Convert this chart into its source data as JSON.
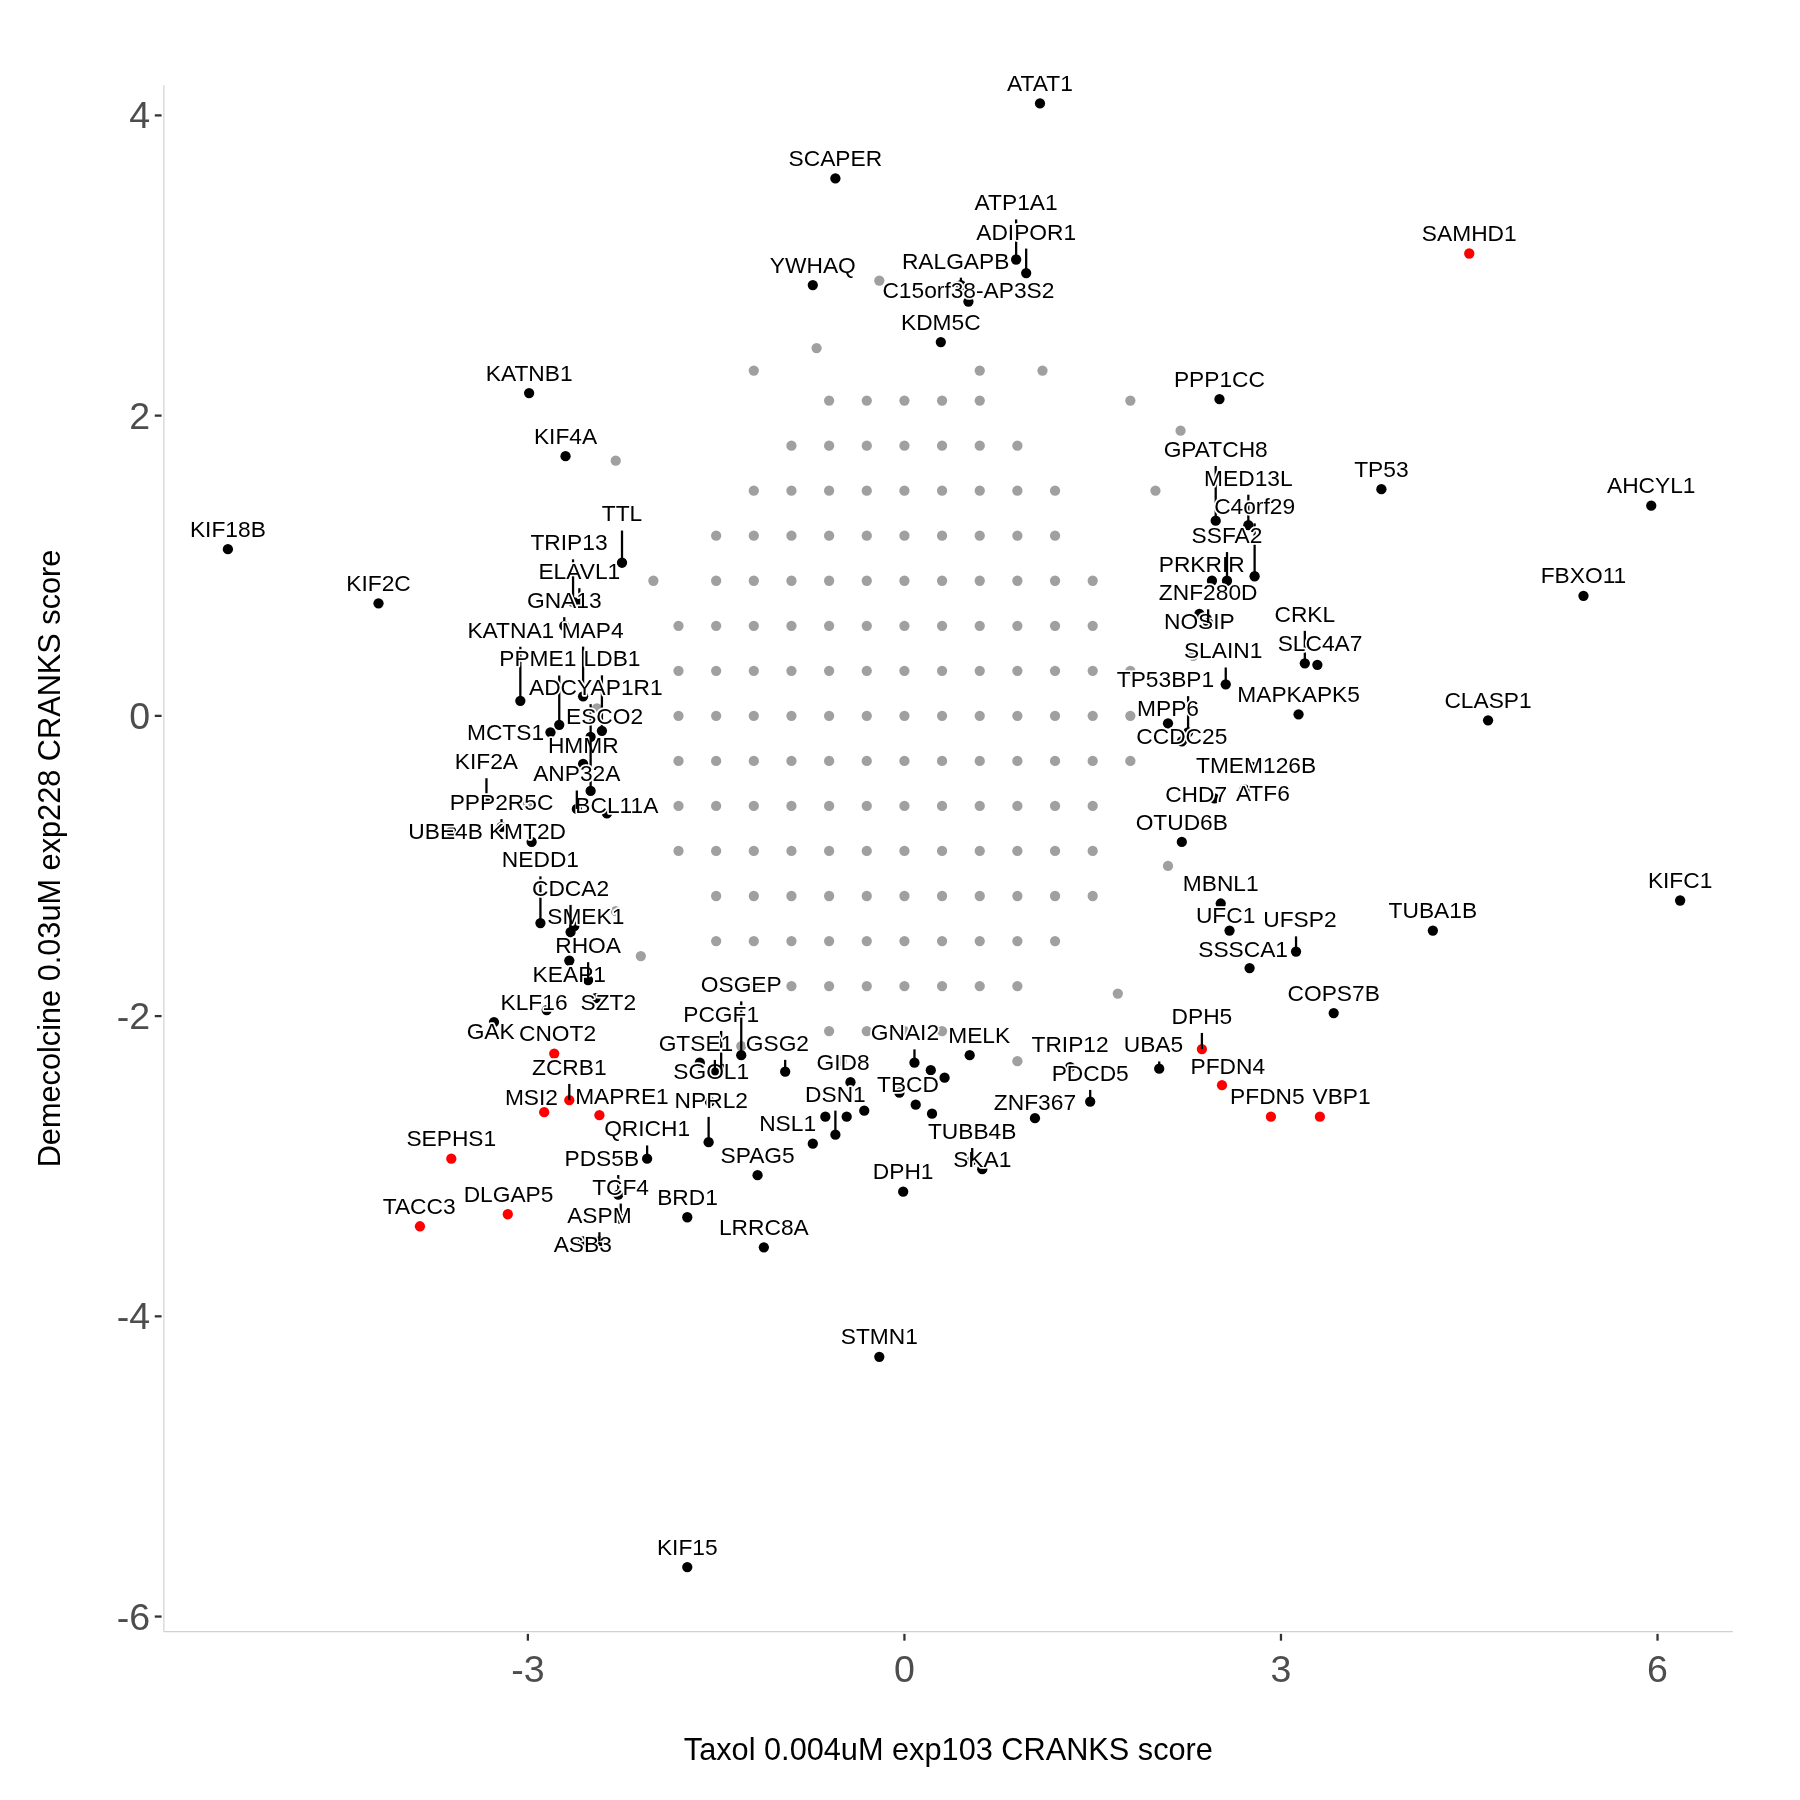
{
  "chart_data": {
    "type": "scatter",
    "xlabel": "Taxol 0.004uM exp103 CRANKS score",
    "ylabel": "Demecolcine 0.03uM exp228 CRANKS score",
    "xlim": [
      -5.9,
      6.6
    ],
    "ylim": [
      -6.1,
      4.2
    ],
    "xticks": [
      -3,
      0,
      3,
      6
    ],
    "yticks": [
      -6,
      -4,
      -2,
      0,
      2,
      4
    ],
    "grid": false,
    "marker": "circle",
    "series": [
      {
        "color": "#a0a0a0",
        "x": [
          -0.6,
          -0.3,
          0,
          0.3,
          0.6,
          -0.9,
          -0.6,
          -0.3,
          0,
          0.3,
          0.6,
          0.9,
          -1.2,
          -0.9,
          -0.6,
          -0.3,
          0,
          0.3,
          0.6,
          0.9,
          1.2,
          -1.5,
          -1.2,
          -0.9,
          -0.6,
          -0.3,
          0,
          0.3,
          0.6,
          0.9,
          1.2,
          -1.5,
          -1.2,
          -0.9,
          -0.6,
          -0.3,
          0,
          0.3,
          0.6,
          0.9,
          1.2,
          1.5,
          -1.8,
          -1.5,
          -1.2,
          -0.9,
          -0.6,
          -0.3,
          0,
          0.3,
          0.6,
          0.9,
          1.2,
          1.5,
          -1.8,
          -1.5,
          -1.2,
          -0.9,
          -0.6,
          -0.3,
          0,
          0.3,
          0.6,
          0.9,
          1.2,
          1.5,
          1.8,
          -1.8,
          -1.5,
          -1.2,
          -0.9,
          -0.6,
          -0.3,
          0,
          0.3,
          0.6,
          0.9,
          1.2,
          1.5,
          1.8,
          -1.8,
          -1.5,
          -1.2,
          -0.9,
          -0.6,
          -0.3,
          0,
          0.3,
          0.6,
          0.9,
          1.2,
          1.5,
          1.8,
          -1.8,
          -1.5,
          -1.2,
          -0.9,
          -0.6,
          -0.3,
          0,
          0.3,
          0.6,
          0.9,
          1.2,
          1.5,
          -1.8,
          -1.5,
          -1.2,
          -0.9,
          -0.6,
          -0.3,
          0,
          0.3,
          0.6,
          0.9,
          1.2,
          1.5,
          -1.5,
          -1.2,
          -0.9,
          -0.6,
          -0.3,
          0,
          0.3,
          0.6,
          0.9,
          1.2,
          1.5,
          -1.5,
          -1.2,
          -0.9,
          -0.6,
          -0.3,
          0,
          0.3,
          0.6,
          0.9,
          1.2,
          -1.2,
          -0.9,
          -0.6,
          -0.3,
          0,
          0.3,
          0.6,
          0.9,
          -0.6,
          -0.3,
          0,
          0.3,
          -2.3,
          -1.2,
          -0.2,
          0.6,
          1.1,
          1.8,
          2.2,
          -2.45,
          -3.0,
          2.0,
          2.1,
          1.7,
          -1.3,
          -0.5,
          -2.1,
          -2.3,
          2.3,
          -2.0,
          0.9,
          -0.7
        ],
        "values": [
          2.1,
          2.1,
          2.1,
          2.1,
          2.1,
          1.8,
          1.8,
          1.8,
          1.8,
          1.8,
          1.8,
          1.8,
          1.5,
          1.5,
          1.5,
          1.5,
          1.5,
          1.5,
          1.5,
          1.5,
          1.5,
          1.2,
          1.2,
          1.2,
          1.2,
          1.2,
          1.2,
          1.2,
          1.2,
          1.2,
          1.2,
          0.9,
          0.9,
          0.9,
          0.9,
          0.9,
          0.9,
          0.9,
          0.9,
          0.9,
          0.9,
          0.9,
          0.6,
          0.6,
          0.6,
          0.6,
          0.6,
          0.6,
          0.6,
          0.6,
          0.6,
          0.6,
          0.6,
          0.6,
          0.3,
          0.3,
          0.3,
          0.3,
          0.3,
          0.3,
          0.3,
          0.3,
          0.3,
          0.3,
          0.3,
          0.3,
          0.3,
          0,
          0,
          0,
          0,
          0,
          0,
          0,
          0,
          0,
          0,
          0,
          0,
          0,
          -0.3,
          -0.3,
          -0.3,
          -0.3,
          -0.3,
          -0.3,
          -0.3,
          -0.3,
          -0.3,
          -0.3,
          -0.3,
          -0.3,
          -0.3,
          -0.6,
          -0.6,
          -0.6,
          -0.6,
          -0.6,
          -0.6,
          -0.6,
          -0.6,
          -0.6,
          -0.6,
          -0.6,
          -0.6,
          -0.9,
          -0.9,
          -0.9,
          -0.9,
          -0.9,
          -0.9,
          -0.9,
          -0.9,
          -0.9,
          -0.9,
          -0.9,
          -0.9,
          -1.2,
          -1.2,
          -1.2,
          -1.2,
          -1.2,
          -1.2,
          -1.2,
          -1.2,
          -1.2,
          -1.2,
          -1.2,
          -1.5,
          -1.5,
          -1.5,
          -1.5,
          -1.5,
          -1.5,
          -1.5,
          -1.5,
          -1.5,
          -1.5,
          -1.8,
          -1.8,
          -1.8,
          -1.8,
          -1.8,
          -1.8,
          -1.8,
          -1.8,
          -2.1,
          -2.1,
          -2.1,
          -2.1,
          1.7,
          2.3,
          2.9,
          2.3,
          2.3,
          2.1,
          1.9,
          0.05,
          -0.58,
          1.5,
          -1.0,
          -1.85,
          -2.2,
          -2.3,
          -1.6,
          -1.3,
          0.4,
          0.9,
          -2.3,
          2.45
        ]
      },
      {
        "color": "#000000",
        "x": [
          1.08,
          -0.55,
          0.89,
          0.97,
          0.45,
          -0.73,
          0.51,
          0.29,
          -2.99,
          -2.7,
          2.51,
          3.8,
          5.95,
          2.48,
          2.74,
          -5.39,
          -2.25,
          2.79,
          2.45,
          2.57,
          5.41,
          -4.19,
          -2.64,
          -2.59,
          -2.71,
          2.35,
          2.42,
          3.19,
          3.29,
          2.56,
          -2.56,
          -3.06,
          3.14,
          2.26,
          2.21,
          2.1,
          4.65,
          -2.75,
          -2.82,
          -2.41,
          -2.5,
          -2.56,
          -2.5,
          -3.33,
          -2.37,
          -2.61,
          2.77,
          2.71,
          2.47,
          -3.21,
          -3.61,
          -2.97,
          2.21,
          2.52,
          6.18,
          -2.9,
          -2.63,
          -2.66,
          2.59,
          4.21,
          3.12,
          -2.67,
          2.75,
          -2.52,
          -2.46,
          -2.85,
          3.42,
          -3.27,
          -1.3,
          0.52,
          -1.63,
          0.08,
          -1.46,
          -1.51,
          1.32,
          2.03,
          -0.95,
          -0.43,
          1.04,
          1.48,
          0.09,
          -1.56,
          -0.55,
          -0.73,
          -2.05,
          0.62,
          0.54,
          -1.17,
          -0.01,
          -2.28,
          -1.73,
          -2.26,
          -2.56,
          -2.43,
          -1.12,
          -0.2,
          -1.73,
          -1.55,
          -0.63,
          -0.46,
          -0.32,
          -0.04,
          0.21,
          0.32,
          0.22
        ],
        "values": [
          4.08,
          3.58,
          3.04,
          2.95,
          2.87,
          2.87,
          2.76,
          2.49,
          2.15,
          1.73,
          2.11,
          1.51,
          1.4,
          1.3,
          1.27,
          1.11,
          1.02,
          0.93,
          0.9,
          0.9,
          0.8,
          0.75,
          0.76,
          0.76,
          0.6,
          0.68,
          0.62,
          0.35,
          0.34,
          0.21,
          0.13,
          0.1,
          0.01,
          -0.11,
          -0.17,
          -0.05,
          -0.03,
          -0.06,
          -0.11,
          -0.1,
          -0.14,
          -0.32,
          -0.5,
          -0.56,
          -0.65,
          -0.62,
          -0.34,
          -0.49,
          -0.55,
          -0.74,
          -0.77,
          -0.84,
          -0.84,
          -1.25,
          -1.23,
          -1.38,
          -1.4,
          -1.44,
          -1.43,
          -1.43,
          -1.57,
          -1.63,
          -1.68,
          -1.76,
          -1.88,
          -1.96,
          -1.98,
          -2.04,
          -2.26,
          -2.26,
          -2.31,
          -2.31,
          -2.35,
          -2.37,
          -2.34,
          -2.35,
          -2.37,
          -2.44,
          -2.68,
          -2.57,
          -2.59,
          -2.84,
          -2.79,
          -2.85,
          -2.95,
          -3.02,
          -2.96,
          -3.06,
          -3.17,
          -3.19,
          -3.34,
          -3.35,
          -3.5,
          -3.5,
          -3.54,
          -4.27,
          -5.67,
          -2.57,
          -2.67,
          -2.67,
          -2.63,
          -2.51,
          -2.36,
          -2.41,
          -2.65
        ]
      },
      {
        "color": "#ff0000",
        "x": [
          4.5,
          -2.79,
          -2.67,
          -2.87,
          -2.43,
          -3.61,
          -3.16,
          -3.86,
          2.37,
          2.53,
          2.92,
          3.31
        ],
        "values": [
          3.08,
          -2.25,
          -2.56,
          -2.64,
          -2.66,
          -2.95,
          -3.32,
          -3.4,
          -2.22,
          -2.46,
          -2.67,
          -2.67
        ]
      }
    ],
    "annotations": [
      {
        "text": "ATAT1",
        "x": 1.08,
        "y": 4.08
      },
      {
        "text": "SCAPER",
        "x": -0.55,
        "y": 3.58
      },
      {
        "text": "ATP1A1",
        "x": 0.89,
        "y": 3.04
      },
      {
        "text": "ADIPOR1",
        "x": 0.97,
        "y": 2.95
      },
      {
        "text": "RALGAPB",
        "x": 0.45,
        "y": 2.87
      },
      {
        "text": "YWHAQ",
        "x": -0.73,
        "y": 2.87
      },
      {
        "text": "C15orf38-AP3S2",
        "x": 0.51,
        "y": 2.76
      },
      {
        "text": "KDM5C",
        "x": 0.29,
        "y": 2.49
      },
      {
        "text": "KATNB1",
        "x": -2.99,
        "y": 2.15
      },
      {
        "text": "KIF4A",
        "x": -2.7,
        "y": 1.73
      },
      {
        "text": "PPP1CC",
        "x": 2.51,
        "y": 2.11
      },
      {
        "text": "TP53",
        "x": 3.8,
        "y": 1.51
      },
      {
        "text": "AHCYL1",
        "x": 5.95,
        "y": 1.4
      },
      {
        "text": "GPATCH8",
        "x": 2.48,
        "y": 1.3
      },
      {
        "text": "MED13L",
        "x": 2.74,
        "y": 1.27
      },
      {
        "text": "KIF18B",
        "x": -5.39,
        "y": 1.11
      },
      {
        "text": "TTL",
        "x": -2.25,
        "y": 1.02
      },
      {
        "text": "C4orf29",
        "x": 2.79,
        "y": 0.93
      },
      {
        "text": "PRKRIR",
        "x": 2.45,
        "y": 0.9
      },
      {
        "text": "SSFA2",
        "x": 2.57,
        "y": 0.9
      },
      {
        "text": "FBXO11",
        "x": 5.41,
        "y": 0.8
      },
      {
        "text": "KIF2C",
        "x": -4.19,
        "y": 0.75
      },
      {
        "text": "TRIP13",
        "x": -2.64,
        "y": 0.76
      },
      {
        "text": "ELAVL1",
        "x": -2.59,
        "y": 0.76
      },
      {
        "text": "GNA13",
        "x": -2.71,
        "y": 0.6
      },
      {
        "text": "NOSIP",
        "x": 2.35,
        "y": 0.68
      },
      {
        "text": "ZNF280D",
        "x": 2.42,
        "y": 0.62
      },
      {
        "text": "CRKL",
        "x": 3.19,
        "y": 0.35
      },
      {
        "text": "SLC4A7",
        "x": 3.29,
        "y": 0.34
      },
      {
        "text": "SLAIN1",
        "x": 2.56,
        "y": 0.21
      },
      {
        "text": "MAP4",
        "x": -2.56,
        "y": 0.13
      },
      {
        "text": "KATNA1",
        "x": -3.06,
        "y": 0.1
      },
      {
        "text": "MAPKAPK5",
        "x": 3.14,
        "y": 0.01
      },
      {
        "text": "TP53BP1",
        "x": 2.26,
        "y": -0.11
      },
      {
        "text": "CCDC25",
        "x": 2.21,
        "y": -0.17
      },
      {
        "text": "MPP6",
        "x": 2.1,
        "y": -0.05
      },
      {
        "text": "CLASP1",
        "x": 4.65,
        "y": -0.03
      },
      {
        "text": "PPME1",
        "x": -2.75,
        "y": -0.06
      },
      {
        "text": "MCTS1",
        "x": -2.82,
        "y": -0.11
      },
      {
        "text": "LDB1",
        "x": -2.41,
        "y": -0.1
      },
      {
        "text": "ADCYAP1R1",
        "x": -2.5,
        "y": -0.14
      },
      {
        "text": "HMMR",
        "x": -2.56,
        "y": -0.32
      },
      {
        "text": "ESCO2",
        "x": -2.5,
        "y": -0.5
      },
      {
        "text": "KIF2A",
        "x": -3.33,
        "y": -0.56
      },
      {
        "text": "BCL11A",
        "x": -2.37,
        "y": -0.65
      },
      {
        "text": "ANP32A",
        "x": -2.61,
        "y": -0.62
      },
      {
        "text": "TMEM126B",
        "x": 2.77,
        "y": -0.34
      },
      {
        "text": "ATF6",
        "x": 2.71,
        "y": -0.49
      },
      {
        "text": "CHD7",
        "x": 2.47,
        "y": -0.55
      },
      {
        "text": "PPP2R5C",
        "x": -3.21,
        "y": -0.74
      },
      {
        "text": "UBE4B",
        "x": -3.61,
        "y": -0.77
      },
      {
        "text": "KMT2D",
        "x": -2.97,
        "y": -0.84
      },
      {
        "text": "OTUD6B",
        "x": 2.21,
        "y": -0.84
      },
      {
        "text": "MBNL1",
        "x": 2.52,
        "y": -1.25
      },
      {
        "text": "KIFC1",
        "x": 6.18,
        "y": -1.23
      },
      {
        "text": "NEDD1",
        "x": -2.9,
        "y": -1.38
      },
      {
        "text": "SMEK1",
        "x": -2.63,
        "y": -1.4
      },
      {
        "text": "CDCA2",
        "x": -2.66,
        "y": -1.44
      },
      {
        "text": "UFC1",
        "x": 2.59,
        "y": -1.43
      },
      {
        "text": "TUBA1B",
        "x": 4.21,
        "y": -1.43
      },
      {
        "text": "UFSP2",
        "x": 3.12,
        "y": -1.57
      },
      {
        "text": "KEAP1",
        "x": -2.67,
        "y": -1.63
      },
      {
        "text": "SSSCA1",
        "x": 2.75,
        "y": -1.68
      },
      {
        "text": "RHOA",
        "x": -2.52,
        "y": -1.76
      },
      {
        "text": "SZT2",
        "x": -2.46,
        "y": -1.88
      },
      {
        "text": "KLF16",
        "x": -2.85,
        "y": -1.96
      },
      {
        "text": "COPS7B",
        "x": 3.42,
        "y": -1.98
      },
      {
        "text": "GAK",
        "x": -3.27,
        "y": -2.04
      },
      {
        "text": "OSGEP",
        "x": -1.3,
        "y": -2.26
      },
      {
        "text": "MELK",
        "x": 0.52,
        "y": -2.26
      },
      {
        "text": "SGOL1",
        "x": -1.63,
        "y": -2.31
      },
      {
        "text": "GNAI2",
        "x": 0.08,
        "y": -2.31
      },
      {
        "text": "PCGF1",
        "x": -1.46,
        "y": -2.35
      },
      {
        "text": "GTSE1",
        "x": -1.51,
        "y": -2.37
      },
      {
        "text": "TRIP12",
        "x": 1.32,
        "y": -2.34
      },
      {
        "text": "UBA5",
        "x": 2.03,
        "y": -2.35
      },
      {
        "text": "GSG2",
        "x": -0.95,
        "y": -2.37
      },
      {
        "text": "GID8",
        "x": -0.43,
        "y": -2.44
      },
      {
        "text": "ZNF367",
        "x": 1.04,
        "y": -2.68
      },
      {
        "text": "PDCD5",
        "x": 1.48,
        "y": -2.57
      },
      {
        "text": "TBCD",
        "x": 0.09,
        "y": -2.59
      },
      {
        "text": "NPRL2",
        "x": -1.56,
        "y": -2.84
      },
      {
        "text": "DSN1",
        "x": -0.55,
        "y": -2.79
      },
      {
        "text": "NSL1",
        "x": -0.73,
        "y": -2.85
      },
      {
        "text": "QRICH1",
        "x": -2.05,
        "y": -2.95
      },
      {
        "text": "SKA1",
        "x": 0.62,
        "y": -3.02
      },
      {
        "text": "TUBB4B",
        "x": 0.54,
        "y": -2.96
      },
      {
        "text": "SPAG5",
        "x": -1.17,
        "y": -3.06
      },
      {
        "text": "DPH1",
        "x": -0.01,
        "y": -3.17
      },
      {
        "text": "PDS5B",
        "x": -2.28,
        "y": -3.19
      },
      {
        "text": "BRD1",
        "x": -1.73,
        "y": -3.34
      },
      {
        "text": "TCF4",
        "x": -2.26,
        "y": -3.35
      },
      {
        "text": "ASB3",
        "x": -2.56,
        "y": -3.5
      },
      {
        "text": "ASPM",
        "x": -2.43,
        "y": -3.5
      },
      {
        "text": "LRRC8A",
        "x": -1.12,
        "y": -3.54
      },
      {
        "text": "STMN1",
        "x": -0.2,
        "y": -4.27
      },
      {
        "text": "KIF15",
        "x": -1.73,
        "y": -5.67
      },
      {
        "text": "SAMHD1",
        "x": 4.5,
        "y": 3.08
      },
      {
        "text": "CNOT2",
        "x": -2.79,
        "y": -2.25
      },
      {
        "text": "ZCRB1",
        "x": -2.67,
        "y": -2.56
      },
      {
        "text": "MSI2",
        "x": -2.87,
        "y": -2.64
      },
      {
        "text": "MAPRE1",
        "x": -2.43,
        "y": -2.66
      },
      {
        "text": "SEPHS1",
        "x": -3.61,
        "y": -2.95
      },
      {
        "text": "DLGAP5",
        "x": -3.16,
        "y": -3.32
      },
      {
        "text": "TACC3",
        "x": -3.86,
        "y": -3.4
      },
      {
        "text": "DPH5",
        "x": 2.37,
        "y": -2.22
      },
      {
        "text": "PFDN4",
        "x": 2.53,
        "y": -2.46
      },
      {
        "text": "PFDN5",
        "x": 2.92,
        "y": -2.67
      },
      {
        "text": "VBP1",
        "x": 3.31,
        "y": -2.67
      }
    ]
  }
}
